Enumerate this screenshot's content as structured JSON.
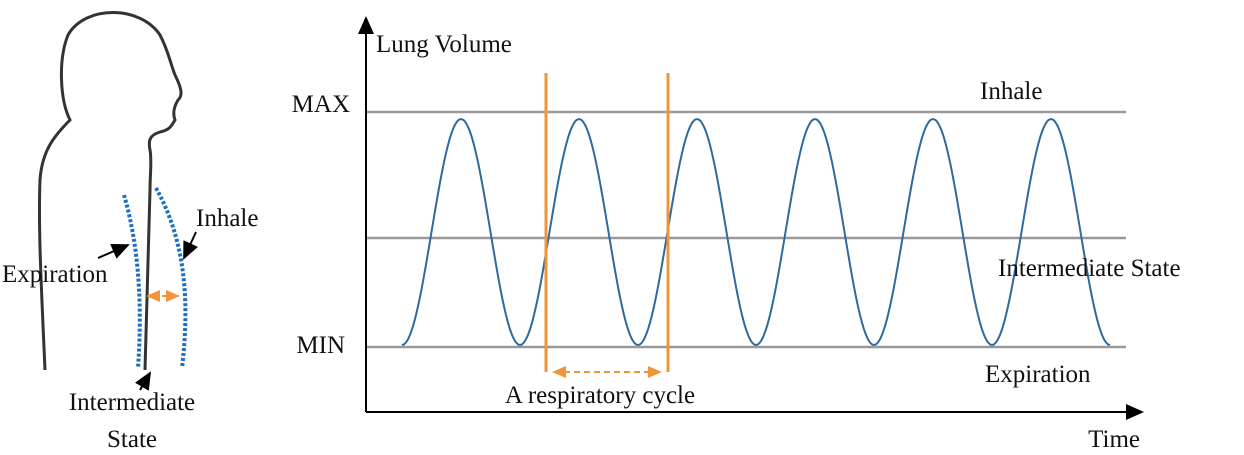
{
  "figure": {
    "labels": [
      "Inhale",
      "Expiration",
      "Intermediate",
      "State"
    ]
  },
  "chart": {
    "y_axis_label": "Lung Volume",
    "max_label": "MAX",
    "min_label": "MIN",
    "inhale_label": "Inhale",
    "intermediate_label": "Intermediate State",
    "expiration_label": "Expiration",
    "cycle_label": "A respiratory cycle",
    "x_axis_label": "Time"
  }
}
